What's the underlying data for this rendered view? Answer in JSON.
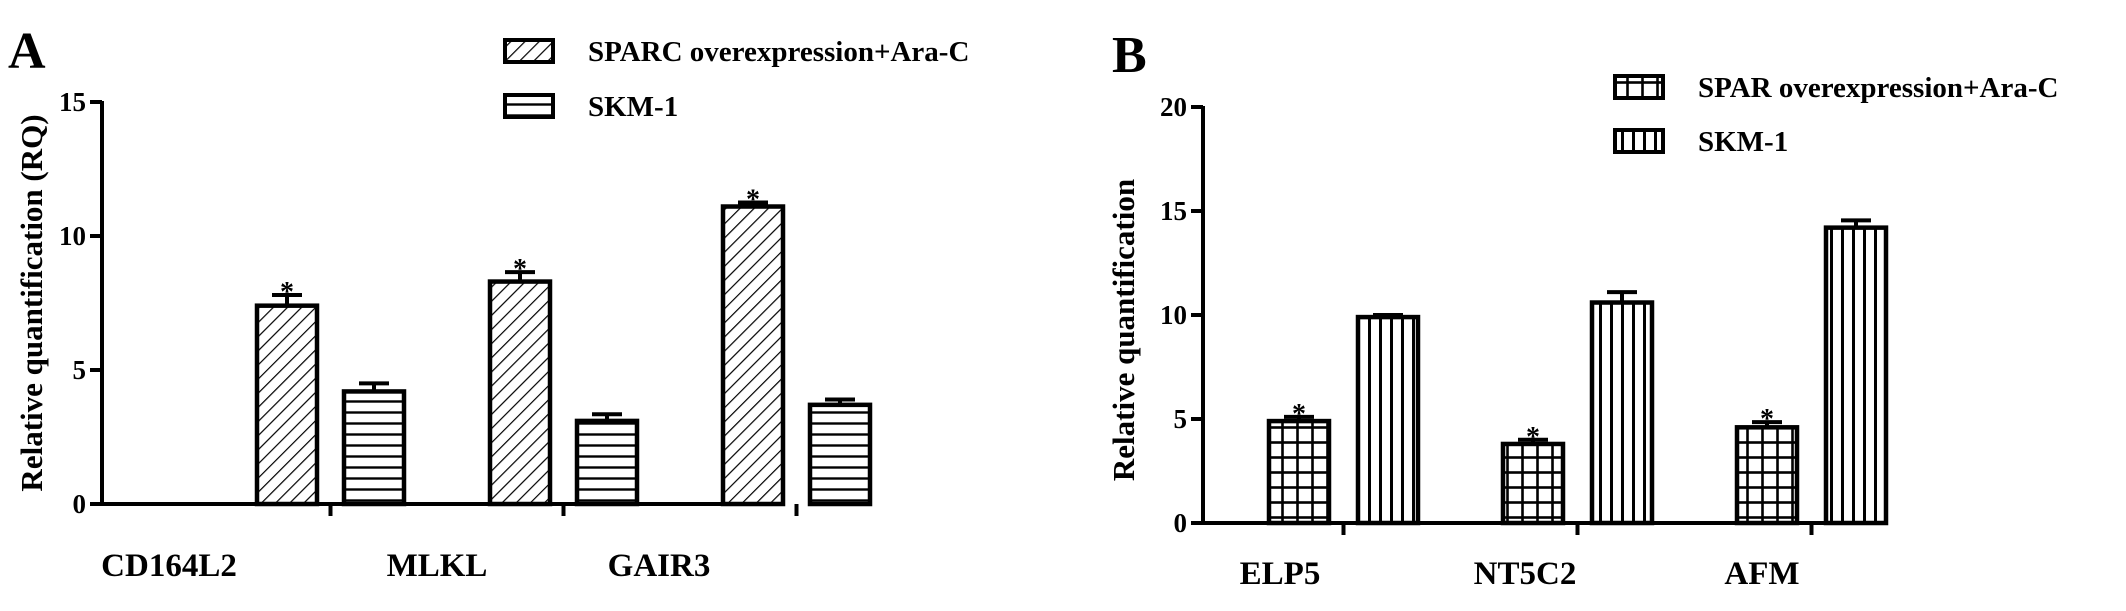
{
  "chart_data": [
    {
      "panel": "A",
      "type": "bar",
      "title": "",
      "xlabel": "",
      "ylabel": "Relative quantification (RQ)",
      "ylim": [
        0,
        15
      ],
      "yticks": [
        "0",
        "5",
        "10",
        "15"
      ],
      "categories": [
        "CD164L2",
        "MLKL",
        "GAIR3"
      ],
      "series": [
        {
          "name": "SPARC overexpression+Ara-C",
          "pattern": "diagonal",
          "values": [
            7.4,
            8.3,
            11.1
          ],
          "errors": [
            0.4,
            0.35,
            0.15
          ]
        },
        {
          "name": "SKM-1",
          "pattern": "horizontal",
          "values": [
            4.2,
            3.1,
            3.7
          ],
          "errors": [
            0.3,
            0.25,
            0.2
          ]
        }
      ],
      "annotations": [
        {
          "category": "CD164L2",
          "series": 0,
          "text": "*"
        },
        {
          "category": "MLKL",
          "series": 0,
          "text": "*"
        },
        {
          "category": "GAIR3",
          "series": 0,
          "text": "*"
        }
      ],
      "legend": "top-right",
      "grid": false
    },
    {
      "panel": "B",
      "type": "bar",
      "title": "",
      "xlabel": "",
      "ylabel": "Relative quantification",
      "ylim": [
        0,
        20
      ],
      "yticks": [
        "0",
        "5",
        "10",
        "15",
        "20"
      ],
      "categories": [
        "ELP5",
        "NT5C2",
        "AFM"
      ],
      "series": [
        {
          "name": "SPAR overexpression+Ara-C",
          "pattern": "grid",
          "values": [
            4.9,
            3.8,
            4.6
          ],
          "errors": [
            0.2,
            0.2,
            0.25
          ]
        },
        {
          "name": "SKM-1",
          "pattern": "vertical",
          "values": [
            9.9,
            10.6,
            14.2
          ],
          "errors": [
            0.1,
            0.5,
            0.35
          ]
        }
      ],
      "annotations": [
        {
          "category": "ELP5",
          "series": 0,
          "text": "*"
        },
        {
          "category": "NT5C2",
          "series": 0,
          "text": "*"
        },
        {
          "category": "AFM",
          "series": 0,
          "text": "*"
        }
      ],
      "legend": "top-right",
      "grid": false
    }
  ]
}
